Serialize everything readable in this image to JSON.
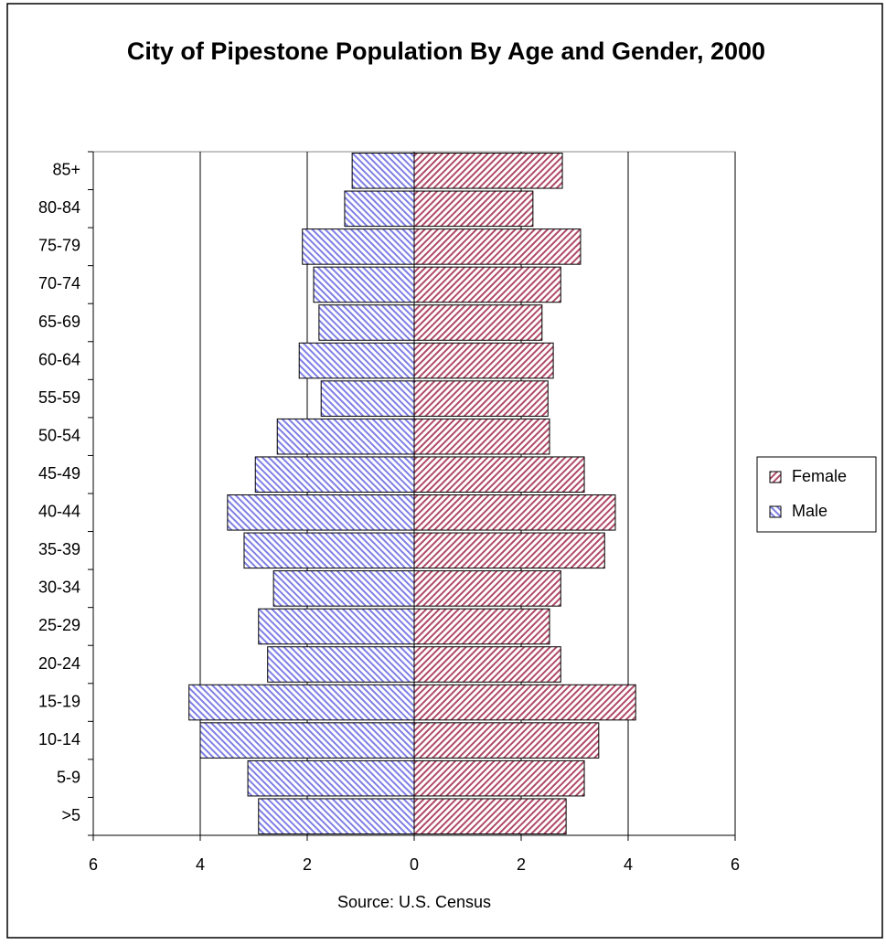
{
  "chart_data": {
    "type": "population-pyramid",
    "title": "City of Pipestone Population By Age and Gender, 2000",
    "x_label": "Source: U.S. Census",
    "categories": [
      ">5",
      "5-9",
      "10-14",
      "15-19",
      "20-24",
      "25-29",
      "30-34",
      "35-39",
      "40-44",
      "45-49",
      "50-54",
      "55-59",
      "60-64",
      "65-69",
      "70-74",
      "75-79",
      "80-84",
      "85+"
    ],
    "series": [
      {
        "name": "Female",
        "color": "#b04a68",
        "values": [
          2.84,
          3.18,
          3.45,
          4.14,
          2.74,
          2.53,
          2.74,
          3.56,
          3.76,
          3.18,
          2.53,
          2.5,
          2.6,
          2.39,
          2.74,
          3.11,
          2.22,
          2.77
        ]
      },
      {
        "name": "Male",
        "color": "#7f7fe6",
        "values": [
          -2.91,
          -3.11,
          -4.0,
          -4.21,
          -2.74,
          -2.91,
          -2.63,
          -3.18,
          -3.49,
          -2.97,
          -2.56,
          -1.74,
          -2.15,
          -1.78,
          -1.88,
          -2.09,
          -1.3,
          -1.16
        ]
      }
    ],
    "xlim": [
      -6,
      6
    ],
    "xticks": [
      {
        "value": -6,
        "label": "6"
      },
      {
        "value": -4,
        "label": "4"
      },
      {
        "value": -2,
        "label": "2"
      },
      0,
      2,
      4,
      6
    ],
    "grid": true,
    "legend": "right"
  }
}
